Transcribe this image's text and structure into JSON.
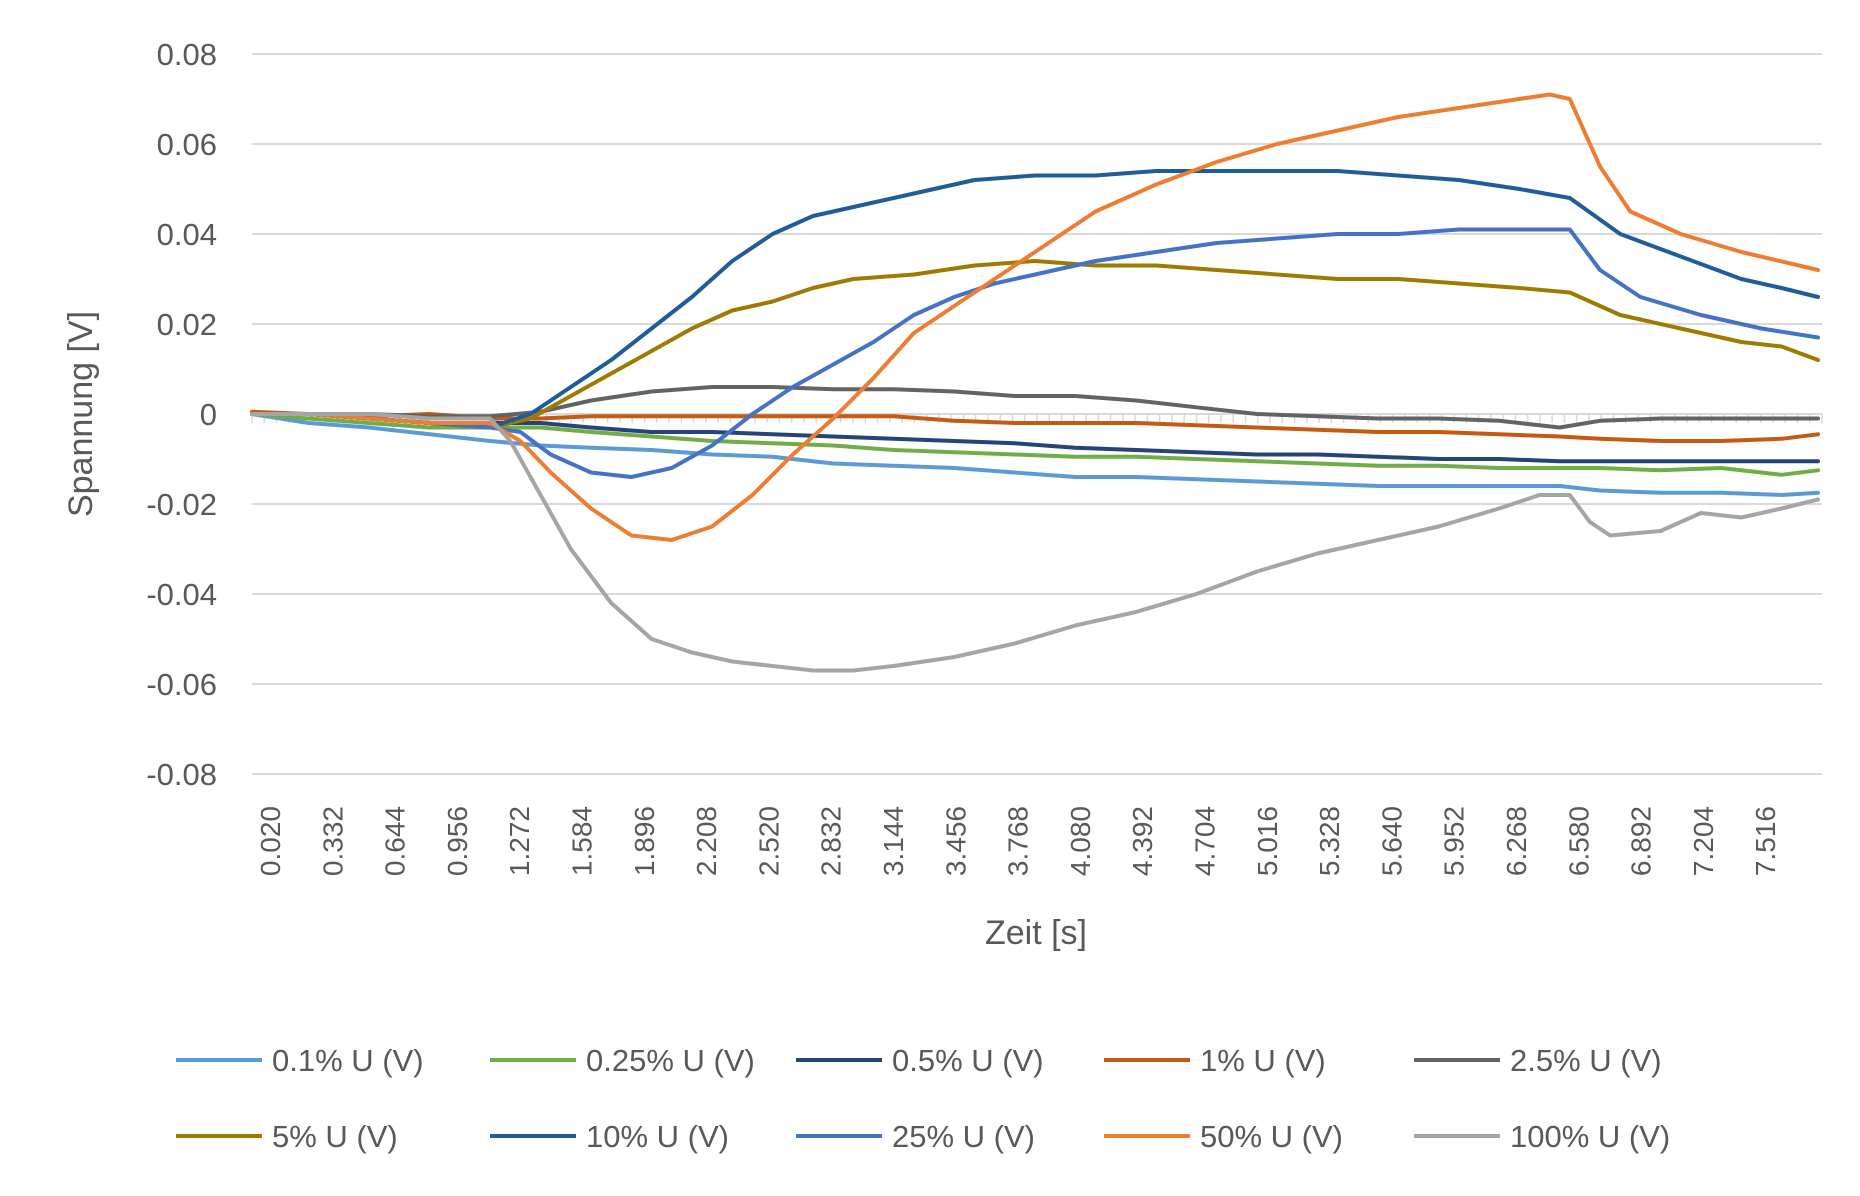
{
  "chart_data": {
    "type": "line",
    "title": "",
    "xlabel": "Zeit [s]",
    "ylabel": "Spannung [V]",
    "ylim": [
      -0.08,
      0.08
    ],
    "y_ticks": [
      "0.08",
      "0.06",
      "0.04",
      "0.02",
      "0",
      "-0.02",
      "-0.04",
      "-0.06",
      "-0.08"
    ],
    "x_tick_labels": [
      "0.020",
      "0.332",
      "0.644",
      "0.956",
      "1.272",
      "1.584",
      "1.896",
      "2.208",
      "2.520",
      "2.832",
      "3.144",
      "3.456",
      "3.768",
      "4.080",
      "4.392",
      "4.704",
      "5.016",
      "5.328",
      "5.640",
      "5.952",
      "6.268",
      "6.580",
      "6.892",
      "7.204",
      "7.516"
    ],
    "xlim": [
      0.02,
      7.8
    ],
    "grid": "horizontal",
    "legend_position": "bottom",
    "series": [
      {
        "name": "0.1% U (V)",
        "color": "#5B9BD5",
        "x": [
          0.02,
          0.3,
          0.6,
          0.9,
          1.2,
          1.45,
          1.7,
          2.0,
          2.3,
          2.6,
          2.9,
          3.2,
          3.5,
          3.8,
          4.1,
          4.4,
          4.7,
          5.0,
          5.3,
          5.6,
          5.9,
          6.2,
          6.5,
          6.7,
          7.0,
          7.3,
          7.6,
          7.78
        ],
        "y": [
          0,
          -0.002,
          -0.003,
          -0.0045,
          -0.006,
          -0.007,
          -0.0075,
          -0.008,
          -0.009,
          -0.0095,
          -0.011,
          -0.0115,
          -0.012,
          -0.013,
          -0.014,
          -0.014,
          -0.0145,
          -0.015,
          -0.0155,
          -0.016,
          -0.016,
          -0.016,
          -0.016,
          -0.017,
          -0.0175,
          -0.0175,
          -0.018,
          -0.0175
        ]
      },
      {
        "name": "0.25% U (V)",
        "color": "#70AD47",
        "x": [
          0.02,
          0.3,
          0.6,
          0.9,
          1.2,
          1.45,
          1.7,
          2.0,
          2.3,
          2.6,
          2.9,
          3.2,
          3.5,
          3.8,
          4.1,
          4.4,
          4.7,
          5.0,
          5.3,
          5.6,
          5.9,
          6.2,
          6.5,
          6.7,
          7.0,
          7.3,
          7.6,
          7.78
        ],
        "y": [
          0,
          -0.001,
          -0.002,
          -0.003,
          -0.003,
          -0.003,
          -0.004,
          -0.005,
          -0.006,
          -0.0065,
          -0.007,
          -0.008,
          -0.0085,
          -0.009,
          -0.0095,
          -0.0095,
          -0.01,
          -0.0105,
          -0.011,
          -0.0115,
          -0.0115,
          -0.012,
          -0.012,
          -0.012,
          -0.0125,
          -0.012,
          -0.0135,
          -0.0125
        ]
      },
      {
        "name": "0.5% U (V)",
        "color": "#264478",
        "x": [
          0.02,
          0.3,
          0.6,
          0.9,
          1.2,
          1.45,
          1.7,
          2.0,
          2.3,
          2.6,
          2.9,
          3.2,
          3.5,
          3.8,
          4.1,
          4.4,
          4.7,
          5.0,
          5.3,
          5.6,
          5.9,
          6.2,
          6.5,
          6.7,
          7.0,
          7.3,
          7.6,
          7.78
        ],
        "y": [
          0,
          0,
          -0.001,
          -0.002,
          -0.002,
          -0.002,
          -0.003,
          -0.004,
          -0.004,
          -0.0045,
          -0.005,
          -0.0055,
          -0.006,
          -0.0065,
          -0.0075,
          -0.008,
          -0.0085,
          -0.009,
          -0.009,
          -0.0095,
          -0.01,
          -0.01,
          -0.0105,
          -0.0105,
          -0.0105,
          -0.0105,
          -0.0105,
          -0.0105
        ]
      },
      {
        "name": "1% U (V)",
        "color": "#C55A11",
        "x": [
          0.02,
          0.3,
          0.6,
          0.9,
          1.2,
          1.45,
          1.7,
          2.0,
          2.3,
          2.6,
          2.9,
          3.2,
          3.5,
          3.8,
          4.1,
          4.4,
          4.7,
          5.0,
          5.3,
          5.6,
          5.9,
          6.2,
          6.5,
          6.7,
          7.0,
          7.3,
          7.6,
          7.78
        ],
        "y": [
          0.0005,
          0,
          -0.0005,
          0,
          -0.001,
          -0.001,
          -0.0005,
          -0.0005,
          -0.0005,
          -0.0005,
          -0.0005,
          -0.0005,
          -0.0015,
          -0.002,
          -0.002,
          -0.002,
          -0.0025,
          -0.003,
          -0.0035,
          -0.004,
          -0.004,
          -0.0045,
          -0.005,
          -0.0055,
          -0.006,
          -0.006,
          -0.0055,
          -0.0045
        ]
      },
      {
        "name": "2.5% U (V)",
        "color": "#636363",
        "x": [
          0.02,
          0.3,
          0.6,
          0.9,
          1.2,
          1.45,
          1.7,
          2.0,
          2.3,
          2.6,
          2.9,
          3.2,
          3.5,
          3.8,
          4.1,
          4.4,
          4.7,
          5.0,
          5.3,
          5.6,
          5.9,
          6.2,
          6.5,
          6.7,
          7.0,
          7.3,
          7.6,
          7.78
        ],
        "y": [
          0,
          0,
          0,
          -0.0005,
          -0.0005,
          0.0005,
          0.003,
          0.005,
          0.006,
          0.006,
          0.0055,
          0.0055,
          0.005,
          0.004,
          0.004,
          0.003,
          0.0015,
          0,
          -0.0005,
          -0.001,
          -0.001,
          -0.0015,
          -0.003,
          -0.0015,
          -0.001,
          -0.001,
          -0.001,
          -0.001
        ]
      },
      {
        "name": "5% U (V)",
        "color": "#9E7B00",
        "x": [
          0.02,
          0.3,
          0.6,
          0.9,
          1.2,
          1.4,
          1.6,
          1.8,
          2.0,
          2.2,
          2.4,
          2.6,
          2.8,
          3.0,
          3.3,
          3.6,
          3.9,
          4.2,
          4.5,
          4.8,
          5.1,
          5.4,
          5.7,
          6.0,
          6.3,
          6.55,
          6.8,
          7.1,
          7.4,
          7.6,
          7.78
        ],
        "y": [
          0,
          0,
          -0.001,
          -0.002,
          -0.003,
          -0.001,
          0.004,
          0.009,
          0.014,
          0.019,
          0.023,
          0.025,
          0.028,
          0.03,
          0.031,
          0.033,
          0.034,
          0.033,
          0.033,
          0.032,
          0.031,
          0.03,
          0.03,
          0.029,
          0.028,
          0.027,
          0.022,
          0.019,
          0.016,
          0.015,
          0.012
        ]
      },
      {
        "name": "10% U (V)",
        "color": "#1F5C9A",
        "x": [
          0.02,
          0.3,
          0.6,
          0.9,
          1.2,
          1.4,
          1.6,
          1.8,
          2.0,
          2.2,
          2.4,
          2.6,
          2.8,
          3.0,
          3.3,
          3.6,
          3.9,
          4.2,
          4.5,
          4.8,
          5.1,
          5.4,
          5.7,
          6.0,
          6.3,
          6.55,
          6.8,
          7.1,
          7.4,
          7.6,
          7.78
        ],
        "y": [
          0,
          0,
          -0.001,
          -0.002,
          -0.003,
          0,
          0.006,
          0.012,
          0.019,
          0.026,
          0.034,
          0.04,
          0.044,
          0.046,
          0.049,
          0.052,
          0.053,
          0.053,
          0.054,
          0.054,
          0.054,
          0.054,
          0.053,
          0.052,
          0.05,
          0.048,
          0.04,
          0.035,
          0.03,
          0.028,
          0.026
        ]
      },
      {
        "name": "25% U (V)",
        "color": "#4472C4",
        "x": [
          0.02,
          0.3,
          0.6,
          0.9,
          1.2,
          1.35,
          1.5,
          1.7,
          1.9,
          2.1,
          2.3,
          2.5,
          2.7,
          2.9,
          3.1,
          3.3,
          3.5,
          3.7,
          3.9,
          4.2,
          4.5,
          4.8,
          5.1,
          5.4,
          5.7,
          6.0,
          6.3,
          6.55,
          6.7,
          6.9,
          7.2,
          7.5,
          7.78
        ],
        "y": [
          0,
          0,
          -0.001,
          -0.002,
          -0.003,
          -0.004,
          -0.009,
          -0.013,
          -0.014,
          -0.012,
          -0.007,
          0,
          0.006,
          0.011,
          0.016,
          0.022,
          0.026,
          0.029,
          0.031,
          0.034,
          0.036,
          0.038,
          0.039,
          0.04,
          0.04,
          0.041,
          0.041,
          0.041,
          0.032,
          0.026,
          0.022,
          0.019,
          0.017
        ]
      },
      {
        "name": "50% U (V)",
        "color": "#ED7D31",
        "x": [
          0.02,
          0.3,
          0.6,
          0.9,
          1.2,
          1.35,
          1.5,
          1.7,
          1.9,
          2.1,
          2.3,
          2.5,
          2.7,
          2.9,
          3.1,
          3.3,
          3.6,
          3.9,
          4.2,
          4.5,
          4.8,
          5.1,
          5.4,
          5.7,
          6.0,
          6.3,
          6.45,
          6.55,
          6.7,
          6.85,
          7.1,
          7.4,
          7.78
        ],
        "y": [
          0,
          0,
          -0.001,
          -0.002,
          -0.002,
          -0.006,
          -0.013,
          -0.021,
          -0.027,
          -0.028,
          -0.025,
          -0.018,
          -0.009,
          -0.001,
          0.008,
          0.018,
          0.027,
          0.036,
          0.045,
          0.051,
          0.056,
          0.06,
          0.063,
          0.066,
          0.068,
          0.07,
          0.071,
          0.07,
          0.055,
          0.045,
          0.04,
          0.036,
          0.032
        ]
      },
      {
        "name": "100% U (V)",
        "color": "#A5A5A5",
        "x": [
          0.02,
          0.3,
          0.6,
          0.9,
          1.2,
          1.3,
          1.45,
          1.6,
          1.8,
          2.0,
          2.2,
          2.4,
          2.6,
          2.8,
          3.0,
          3.2,
          3.5,
          3.8,
          4.1,
          4.4,
          4.7,
          5.0,
          5.3,
          5.6,
          5.9,
          6.2,
          6.4,
          6.55,
          6.65,
          6.75,
          7.0,
          7.2,
          7.4,
          7.6,
          7.78
        ],
        "y": [
          0,
          0,
          0,
          -0.001,
          -0.001,
          -0.006,
          -0.018,
          -0.03,
          -0.042,
          -0.05,
          -0.053,
          -0.055,
          -0.056,
          -0.057,
          -0.057,
          -0.056,
          -0.054,
          -0.051,
          -0.047,
          -0.044,
          -0.04,
          -0.035,
          -0.031,
          -0.028,
          -0.025,
          -0.021,
          -0.018,
          -0.018,
          -0.024,
          -0.027,
          -0.026,
          -0.022,
          -0.023,
          -0.021,
          -0.019
        ]
      }
    ]
  }
}
